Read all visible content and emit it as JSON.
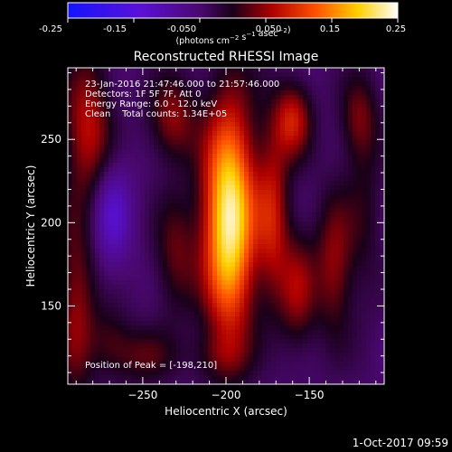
{
  "timestamp": "1-Oct-2017 09:59",
  "colorbar": {
    "tick_labels": [
      "-0.25",
      "-0.15",
      "-0.050",
      "0.050",
      "0.15",
      "0.25"
    ],
    "range": [
      -0.25,
      0.25
    ],
    "unit_label": "(photons cm^-2 s^-1 asec^-2)"
  },
  "chart_data": {
    "type": "heatmap",
    "title": "Reconstructed RHESSI Image",
    "xlabel": "Heliocentric X (arcsec)",
    "ylabel": "Heliocentric Y (arcsec)",
    "xlim": [
      -295,
      -105
    ],
    "ylim": [
      103,
      293
    ],
    "x_ticks": [
      -250,
      -200,
      -150
    ],
    "y_ticks": [
      150,
      200,
      250
    ],
    "x_tick_labels": [
      "−250",
      "−200",
      "−150"
    ],
    "y_tick_labels": [
      "150",
      "200",
      "250"
    ],
    "annotations": [
      "23-Jan-2016 21:47:46.000 to 21:57:46.000",
      "Detectors: 1F 5F 7F, Att 0",
      "Energy Range: 6.0 - 12.0 keV",
      "Clean    Total counts: 1.34E+05"
    ],
    "peak_label": "Position of Peak = [-198,210]",
    "peak": [
      -198,
      210
    ],
    "colormap": "blue-purple-red-yellow-white",
    "color_range": [
      -0.25,
      0.25
    ],
    "sources": [
      {
        "x": -198,
        "y": 202,
        "sx": 11,
        "sy": 48,
        "amp": 0.28
      },
      {
        "x": -172,
        "y": 205,
        "sx": 7,
        "sy": 35,
        "amp": 0.11
      },
      {
        "x": -160,
        "y": 262,
        "sx": 8,
        "sy": 16,
        "amp": 0.12
      },
      {
        "x": -157,
        "y": 160,
        "sx": 8,
        "sy": 25,
        "amp": 0.09
      },
      {
        "x": -232,
        "y": 262,
        "sx": 10,
        "sy": 18,
        "amp": 0.09
      },
      {
        "x": -230,
        "y": 180,
        "sx": 9,
        "sy": 25,
        "amp": 0.07
      },
      {
        "x": -283,
        "y": 258,
        "sx": 10,
        "sy": 30,
        "amp": 0.11
      },
      {
        "x": -290,
        "y": 150,
        "sx": 8,
        "sy": 40,
        "amp": 0.09
      },
      {
        "x": -268,
        "y": 205,
        "sx": 8,
        "sy": 22,
        "amp": -0.08
      },
      {
        "x": -270,
        "y": 130,
        "sx": 9,
        "sy": 15,
        "amp": 0.05
      },
      {
        "x": -135,
        "y": 175,
        "sx": 8,
        "sy": 30,
        "amp": 0.09
      },
      {
        "x": -117,
        "y": 205,
        "sx": 8,
        "sy": 40,
        "amp": 0.04
      },
      {
        "x": -120,
        "y": 262,
        "sx": 8,
        "sy": 18,
        "amp": 0.07
      },
      {
        "x": -250,
        "y": 120,
        "sx": 14,
        "sy": 12,
        "amp": 0.06
      },
      {
        "x": -205,
        "y": 120,
        "sx": 12,
        "sy": 10,
        "amp": 0.04
      }
    ]
  }
}
